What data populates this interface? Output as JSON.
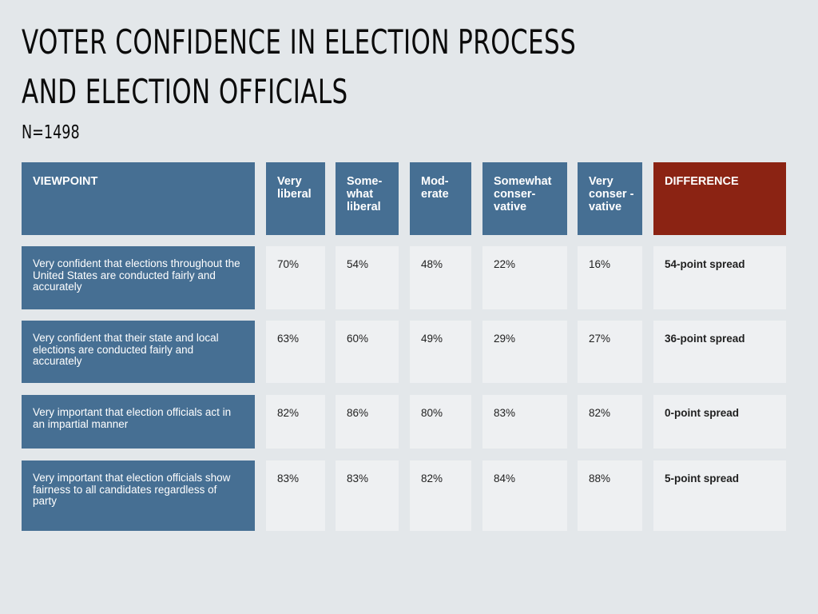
{
  "title": "VOTER CONFIDENCE IN ELECTION PROCESS AND ELECTION OFFICIALS",
  "subtitle": "N=1498",
  "chart_data": {
    "type": "table",
    "title": "VOTER CONFIDENCE IN ELECTION PROCESS AND ELECTION OFFICIALS",
    "subtitle": "N=1498",
    "row_header": "VIEWPOINT",
    "columns": [
      "Very liberal",
      "Some-what liberal",
      "Mod-erate",
      "Somewhat conser-vative",
      "Very conser -vative"
    ],
    "difference_header": "DIFFERENCE",
    "colors": {
      "header": "#466f93",
      "difference_header": "#8b2313",
      "cell": "#eef0f2",
      "background": "#e3e7ea"
    },
    "rows": [
      {
        "label": "Very confident that elections throughout the United States are conducted fairly and accurately",
        "values": [
          "70%",
          "54%",
          "48%",
          "22%",
          "16%"
        ],
        "difference": "54-point spread"
      },
      {
        "label": "Very confident that their state and local elections are conducted fairly and accurately",
        "values": [
          "63%",
          "60%",
          "49%",
          "29%",
          "27%"
        ],
        "difference": "36-point spread"
      },
      {
        "label": "Very important that election officials act in an impartial manner",
        "values": [
          "82%",
          "86%",
          "80%",
          "83%",
          "82%"
        ],
        "difference": "0-point spread"
      },
      {
        "label": "Very important that election officials show fairness to all candidates regardless of party",
        "values": [
          "83%",
          "83%",
          "82%",
          "84%",
          "88%"
        ],
        "difference": "5-point spread"
      }
    ]
  }
}
